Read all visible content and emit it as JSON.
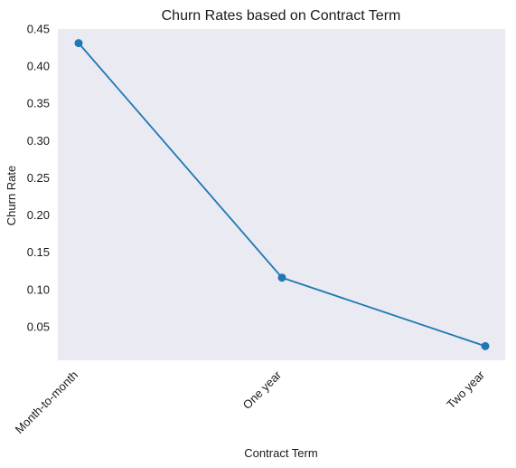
{
  "chart_data": {
    "type": "line",
    "title": "Churn Rates based on Contract Term",
    "xlabel": "Contract Term",
    "ylabel": "Churn Rate",
    "categories": [
      "Month-to-month",
      "One year",
      "Two year"
    ],
    "values": [
      0.431,
      0.116,
      0.024
    ],
    "ylim": [
      0.005,
      0.45
    ],
    "yticks": [
      "0.05",
      "0.10",
      "0.15",
      "0.20",
      "0.25",
      "0.30",
      "0.35",
      "0.40",
      "0.45"
    ],
    "grid": false,
    "legend": "none",
    "colors": {
      "line": "#1f77b4",
      "plot_background": "#eaeaf2"
    }
  }
}
